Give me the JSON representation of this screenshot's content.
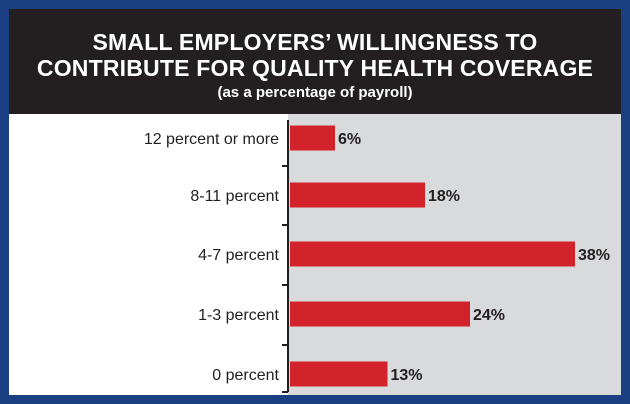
{
  "header": {
    "title_line1": "SMALL EMPLOYERS’ WILLINGNESS TO",
    "title_line2": "CONTRIBUTE FOR QUALITY HEALTH COVERAGE",
    "subtitle": "(as a percentage of payroll)"
  },
  "colors": {
    "frame": "#1a3f82",
    "title_bg": "#231f20",
    "plot_bg": "#d9dadc",
    "bar": "#d2232a"
  },
  "chart_data": {
    "type": "bar",
    "orientation": "horizontal",
    "title": "SMALL EMPLOYERS’ WILLINGNESS TO CONTRIBUTE FOR QUALITY HEALTH COVERAGE",
    "subtitle": "(as a percentage of payroll)",
    "categories": [
      "12 percent or more",
      "8-11 percent",
      "4-7 percent",
      "1-3 percent",
      "0 percent"
    ],
    "values": [
      6,
      18,
      38,
      24,
      13
    ],
    "value_labels": [
      "6%",
      "18%",
      "38%",
      "24%",
      "13%"
    ],
    "xlim": [
      0,
      38
    ],
    "grid": false,
    "legend": "none"
  }
}
